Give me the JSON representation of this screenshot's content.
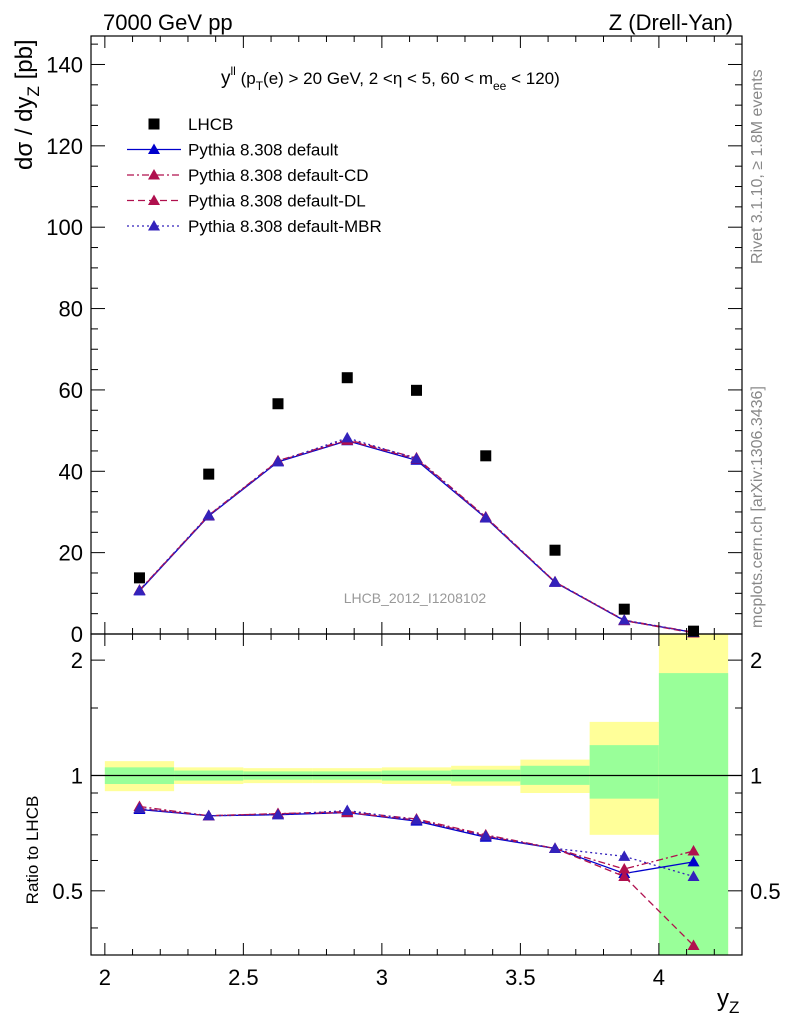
{
  "header": {
    "left": "7000 GeV pp",
    "right": "Z (Drell-Yan)"
  },
  "side": {
    "version": "Rivet 3.1.10, ≥ 1.8M events",
    "source": "mcplots.cern.ch [arXiv:1306.3436]"
  },
  "chart_data": {
    "type": "scatter",
    "analysis_id": "LHCB_2012_I1208102",
    "cut_label": {
      "main": "y",
      "main_sup": "ll",
      "p1": " (p",
      "p1_sub": "T",
      "p2": "(e) > 20 GeV, 2 <η < 5, 60 < m",
      "p2_sub": "ee",
      "p3": " < 120)"
    },
    "xlabel": "y",
    "xlabel_sub": "Z",
    "ylabel_main": {
      "part1": "dσ / dy",
      "sub": "Z",
      "part2": " [pb]"
    },
    "ylabel_ratio": "Ratio to LHCB",
    "xlim": [
      1.95,
      4.3
    ],
    "ylim_main": [
      0,
      147
    ],
    "ylim_ratio": [
      0.34,
      2.34
    ],
    "x_ticks": [
      2,
      2.5,
      3,
      3.5,
      4
    ],
    "x_tick_labels": [
      "2",
      "2.5",
      "3",
      "3.5",
      "4"
    ],
    "y_ticks_main": [
      0,
      20,
      40,
      60,
      80,
      100,
      120,
      140
    ],
    "y_tick_labels_main": [
      "0",
      "20",
      "40",
      "60",
      "80",
      "100",
      "120",
      "140"
    ],
    "y_ticks_ratio": [
      0.5,
      1,
      2
    ],
    "y_tick_labels_ratio": [
      "0.5",
      "1",
      "2"
    ],
    "bin_edges": [
      2.0,
      2.25,
      2.5,
      2.75,
      3.0,
      3.25,
      3.5,
      3.75,
      4.0,
      4.25
    ],
    "x": [
      2.125,
      2.375,
      2.625,
      2.875,
      3.125,
      3.375,
      3.625,
      3.875,
      4.125
    ],
    "data": {
      "name": "LHCB",
      "values": [
        13.8,
        39.3,
        56.6,
        63.0,
        59.9,
        43.8,
        20.6,
        6.1,
        0.7
      ]
    },
    "band_inner": {
      "lo": [
        0.95,
        0.97,
        0.975,
        0.975,
        0.97,
        0.965,
        0.945,
        0.87,
        0.3
      ],
      "hi": [
        1.05,
        1.03,
        1.025,
        1.025,
        1.03,
        1.035,
        1.06,
        1.2,
        1.85
      ]
    },
    "band_outer": {
      "lo": [
        0.91,
        0.95,
        0.955,
        0.955,
        0.95,
        0.94,
        0.9,
        0.7,
        0.3
      ],
      "hi": [
        1.09,
        1.05,
        1.045,
        1.045,
        1.05,
        1.06,
        1.1,
        1.38,
        2.4
      ]
    },
    "series": [
      {
        "name": "Pythia 8.308 default",
        "color": "#0000cc",
        "dash": "solid",
        "values": [
          10.6,
          29.0,
          42.3,
          47.5,
          42.7,
          28.5,
          12.7,
          3.3,
          0.4
        ],
        "ratio": [
          0.815,
          0.785,
          0.79,
          0.8,
          0.76,
          0.69,
          0.645,
          0.555,
          0.595
        ]
      },
      {
        "name": "Pythia 8.308 default-CD",
        "color": "#b0104e",
        "dash": "dashdot",
        "values": [
          10.8,
          29.2,
          42.6,
          47.8,
          43.3,
          28.8,
          12.8,
          3.4,
          0.44
        ],
        "ratio": [
          0.83,
          0.785,
          0.795,
          0.805,
          0.77,
          0.7,
          0.645,
          0.57,
          0.635
        ]
      },
      {
        "name": "Pythia 8.308 default-DL",
        "color": "#b0104e",
        "dash": "dashed",
        "values": [
          10.7,
          29.1,
          42.5,
          47.6,
          43.0,
          28.6,
          12.8,
          3.3,
          0.25
        ],
        "ratio": [
          0.82,
          0.785,
          0.795,
          0.8,
          0.765,
          0.695,
          0.645,
          0.545,
          0.36
        ]
      },
      {
        "name": "Pythia 8.308 default-MBR",
        "color": "#3322bb",
        "dash": "dotted",
        "values": [
          10.7,
          29.2,
          42.4,
          48.2,
          43.1,
          28.6,
          12.8,
          3.4,
          0.38
        ],
        "ratio": [
          0.82,
          0.785,
          0.79,
          0.81,
          0.765,
          0.695,
          0.645,
          0.615,
          0.545
        ]
      }
    ]
  }
}
